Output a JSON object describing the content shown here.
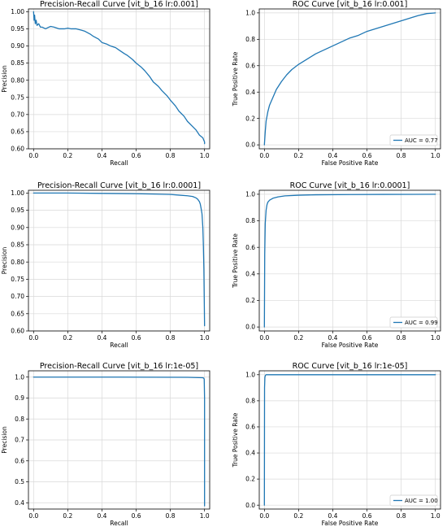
{
  "colors": {
    "series": "#1f77b4",
    "grid": "#d9d9d9",
    "frame": "#000000"
  },
  "chart_data": [
    {
      "type": "line",
      "title": "Precision-Recall Curve [vit_b_16 lr:0.001]",
      "xlabel": "Recall",
      "ylabel": "Precision",
      "xlim": [
        -0.03,
        1.03
      ],
      "ylim": [
        0.6,
        1.008
      ],
      "xticks": [
        0.0,
        0.2,
        0.4,
        0.6,
        0.8,
        1.0
      ],
      "xtick_labels": [
        "0.0",
        "0.2",
        "0.4",
        "0.6",
        "0.8",
        "1.0"
      ],
      "yticks": [
        0.6,
        0.65,
        0.7,
        0.75,
        0.8,
        0.85,
        0.9,
        0.95,
        1.0
      ],
      "ytick_labels": [
        "0.60",
        "0.65",
        "0.70",
        "0.75",
        "0.80",
        "0.85",
        "0.90",
        "0.95",
        "1.00"
      ],
      "grid": true,
      "legend": null,
      "series": [
        {
          "x": [
            0.0,
            0.003,
            0.006,
            0.01,
            0.015,
            0.02,
            0.03,
            0.04,
            0.05,
            0.07,
            0.09,
            0.1,
            0.12,
            0.15,
            0.18,
            0.2,
            0.22,
            0.25,
            0.28,
            0.3,
            0.33,
            0.35,
            0.38,
            0.4,
            0.43,
            0.45,
            0.48,
            0.5,
            0.53,
            0.55,
            0.58,
            0.6,
            0.63,
            0.65,
            0.68,
            0.7,
            0.73,
            0.75,
            0.78,
            0.8,
            0.83,
            0.85,
            0.88,
            0.9,
            0.93,
            0.95,
            0.97,
            0.99,
            1.0,
            1.0
          ],
          "y": [
            1.0,
            0.975,
            0.99,
            0.965,
            0.975,
            0.96,
            0.965,
            0.955,
            0.955,
            0.95,
            0.955,
            0.957,
            0.955,
            0.95,
            0.95,
            0.952,
            0.95,
            0.95,
            0.946,
            0.943,
            0.935,
            0.928,
            0.92,
            0.91,
            0.905,
            0.9,
            0.895,
            0.888,
            0.878,
            0.872,
            0.86,
            0.85,
            0.838,
            0.828,
            0.81,
            0.795,
            0.782,
            0.77,
            0.755,
            0.742,
            0.725,
            0.71,
            0.695,
            0.68,
            0.665,
            0.655,
            0.64,
            0.632,
            0.62,
            0.615
          ]
        }
      ]
    },
    {
      "type": "line",
      "title": "ROC Curve [vit_b_16 lr:0.001]",
      "xlabel": "False Positive Rate",
      "ylabel": "True Positive Rate",
      "xlim": [
        -0.03,
        1.03
      ],
      "ylim": [
        -0.03,
        1.03
      ],
      "xticks": [
        0.0,
        0.2,
        0.4,
        0.6,
        0.8,
        1.0
      ],
      "xtick_labels": [
        "0.0",
        "0.2",
        "0.4",
        "0.6",
        "0.8",
        "1.0"
      ],
      "yticks": [
        0.0,
        0.2,
        0.4,
        0.6,
        0.8,
        1.0
      ],
      "ytick_labels": [
        "0.0",
        "0.2",
        "0.4",
        "0.6",
        "0.8",
        "1.0"
      ],
      "grid": true,
      "legend": "lower-right",
      "series": [
        {
          "name": "AUC = 0.77",
          "x": [
            0.0,
            0.005,
            0.01,
            0.02,
            0.03,
            0.05,
            0.07,
            0.1,
            0.13,
            0.16,
            0.2,
            0.25,
            0.3,
            0.35,
            0.4,
            0.45,
            0.5,
            0.55,
            0.6,
            0.65,
            0.7,
            0.75,
            0.8,
            0.85,
            0.9,
            0.95,
            1.0
          ],
          "y": [
            0.0,
            0.1,
            0.18,
            0.25,
            0.3,
            0.36,
            0.42,
            0.48,
            0.53,
            0.57,
            0.61,
            0.65,
            0.69,
            0.72,
            0.75,
            0.78,
            0.81,
            0.83,
            0.86,
            0.88,
            0.9,
            0.92,
            0.94,
            0.96,
            0.98,
            0.995,
            1.0
          ]
        }
      ]
    },
    {
      "type": "line",
      "title": "Precision-Recall Curve [vit_b_16 lr:0.0001]",
      "xlabel": "Recall",
      "ylabel": "Precision",
      "xlim": [
        -0.03,
        1.03
      ],
      "ylim": [
        0.6,
        1.008
      ],
      "xticks": [
        0.0,
        0.2,
        0.4,
        0.6,
        0.8,
        1.0
      ],
      "xtick_labels": [
        "0.0",
        "0.2",
        "0.4",
        "0.6",
        "0.8",
        "1.0"
      ],
      "yticks": [
        0.6,
        0.65,
        0.7,
        0.75,
        0.8,
        0.85,
        0.9,
        0.95,
        1.0
      ],
      "ytick_labels": [
        "0.60",
        "0.65",
        "0.70",
        "0.75",
        "0.80",
        "0.85",
        "0.90",
        "0.95",
        "1.00"
      ],
      "grid": true,
      "legend": null,
      "series": [
        {
          "x": [
            0.0,
            0.2,
            0.4,
            0.6,
            0.7,
            0.8,
            0.85,
            0.9,
            0.93,
            0.95,
            0.96,
            0.97,
            0.975,
            0.98,
            0.985,
            0.99,
            0.993,
            0.996,
            0.998,
            1.0
          ],
          "y": [
            1.0,
            1.0,
            0.999,
            0.998,
            0.997,
            0.996,
            0.994,
            0.992,
            0.99,
            0.986,
            0.982,
            0.975,
            0.968,
            0.955,
            0.94,
            0.9,
            0.85,
            0.78,
            0.7,
            0.615
          ]
        }
      ]
    },
    {
      "type": "line",
      "title": "ROC Curve [vit_b_16 lr:0.0001]",
      "xlabel": "False Positive Rate",
      "ylabel": "True Positive Rate",
      "xlim": [
        -0.03,
        1.03
      ],
      "ylim": [
        -0.03,
        1.03
      ],
      "xticks": [
        0.0,
        0.2,
        0.4,
        0.6,
        0.8,
        1.0
      ],
      "xtick_labels": [
        "0.0",
        "0.2",
        "0.4",
        "0.6",
        "0.8",
        "1.0"
      ],
      "yticks": [
        0.0,
        0.2,
        0.4,
        0.6,
        0.8,
        1.0
      ],
      "ytick_labels": [
        "0.0",
        "0.2",
        "0.4",
        "0.6",
        "0.8",
        "1.0"
      ],
      "grid": true,
      "legend": "lower-right",
      "series": [
        {
          "name": "AUC = 0.99",
          "x": [
            0.0,
            0.002,
            0.005,
            0.01,
            0.015,
            0.02,
            0.03,
            0.05,
            0.08,
            0.12,
            0.2,
            0.3,
            0.5,
            0.7,
            1.0
          ],
          "y": [
            0.0,
            0.55,
            0.78,
            0.88,
            0.92,
            0.94,
            0.955,
            0.97,
            0.98,
            0.988,
            0.993,
            0.996,
            0.998,
            0.999,
            1.0
          ]
        }
      ]
    },
    {
      "type": "line",
      "title": "Precision-Recall Curve [vit_b_16 lr:1e-05]",
      "xlabel": "Recall",
      "ylabel": "Precision",
      "xlim": [
        -0.03,
        1.03
      ],
      "ylim": [
        0.37,
        1.03
      ],
      "xticks": [
        0.0,
        0.2,
        0.4,
        0.6,
        0.8,
        1.0
      ],
      "xtick_labels": [
        "0.0",
        "0.2",
        "0.4",
        "0.6",
        "0.8",
        "1.0"
      ],
      "yticks": [
        0.4,
        0.5,
        0.6,
        0.7,
        0.8,
        0.9,
        1.0
      ],
      "ytick_labels": [
        "0.4",
        "0.5",
        "0.6",
        "0.7",
        "0.8",
        "0.9",
        "1.0"
      ],
      "grid": true,
      "legend": null,
      "series": [
        {
          "x": [
            0.0,
            0.5,
            0.9,
            0.99,
            0.995,
            0.998,
            1.0,
            1.0
          ],
          "y": [
            1.0,
            1.0,
            0.999,
            0.997,
            0.995,
            0.99,
            0.9,
            0.385
          ]
        }
      ]
    },
    {
      "type": "line",
      "title": "ROC Curve [vit_b_16 lr:1e-05]",
      "xlabel": "False Positive Rate",
      "ylabel": "True Positive Rate",
      "xlim": [
        -0.03,
        1.03
      ],
      "ylim": [
        -0.03,
        1.03
      ],
      "xticks": [
        0.0,
        0.2,
        0.4,
        0.6,
        0.8,
        1.0
      ],
      "xtick_labels": [
        "0.0",
        "0.2",
        "0.4",
        "0.6",
        "0.8",
        "1.0"
      ],
      "yticks": [
        0.0,
        0.2,
        0.4,
        0.6,
        0.8,
        1.0
      ],
      "ytick_labels": [
        "0.0",
        "0.2",
        "0.4",
        "0.6",
        "0.8",
        "1.0"
      ],
      "grid": true,
      "legend": "lower-right",
      "series": [
        {
          "name": "AUC = 1.00",
          "x": [
            0.0,
            0.001,
            0.003,
            0.006,
            0.01,
            1.0
          ],
          "y": [
            0.0,
            0.9,
            0.98,
            0.995,
            1.0,
            1.0
          ]
        }
      ]
    }
  ]
}
